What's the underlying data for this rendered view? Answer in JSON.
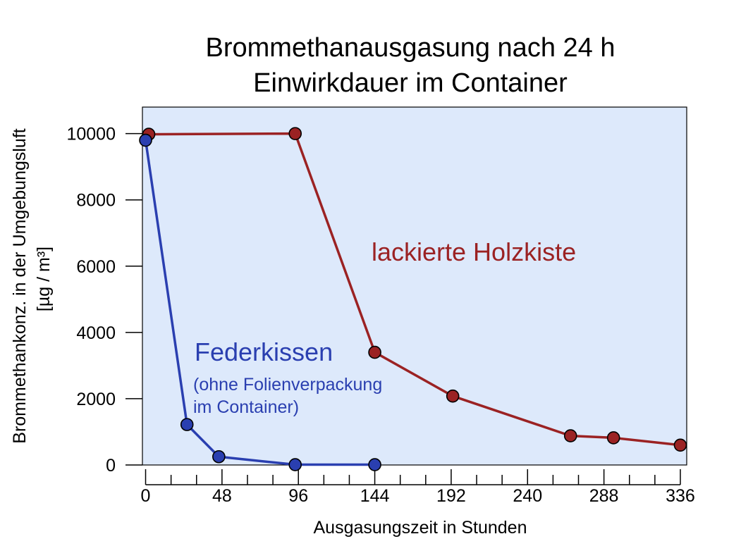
{
  "chart_data": {
    "type": "line",
    "title_lines": [
      "Brommethanausgasung nach 24 h",
      "Einwirkdauer im Container"
    ],
    "xlabel": "Ausgasungszeit in Stunden",
    "ylabel_lines": [
      "Brommethankonz. in der Umgebungsluft",
      "[µg / m³]"
    ],
    "xlim": [
      -2,
      340
    ],
    "ylim": [
      0,
      10800
    ],
    "xticks": [
      0,
      48,
      96,
      144,
      192,
      240,
      288,
      336
    ],
    "xtick_labels": [
      "0",
      "48",
      "96",
      "144",
      "192",
      "240",
      "288",
      "336"
    ],
    "yticks": [
      0,
      2000,
      4000,
      6000,
      8000,
      10000
    ],
    "ytick_labels": [
      "0",
      "2000",
      "4000",
      "6000",
      "8000",
      "10000"
    ],
    "grid": false,
    "series": [
      {
        "name": "lackierte Holzkiste",
        "color": "#9b2223",
        "x": [
          2,
          94,
          144,
          193,
          267,
          294,
          336
        ],
        "y": [
          9980,
          10000,
          3400,
          2080,
          880,
          820,
          600
        ]
      },
      {
        "name": "Federkissen",
        "subtitle_lines": [
          "(ohne Folienverpackung",
          "im Container)"
        ],
        "color": "#2a3fb0",
        "x": [
          0,
          26,
          46,
          94,
          144
        ],
        "y": [
          9800,
          1220,
          250,
          10,
          10
        ]
      }
    ]
  },
  "colors": {
    "plot_background": "#dde9fb",
    "marker_edge": "#000000"
  }
}
